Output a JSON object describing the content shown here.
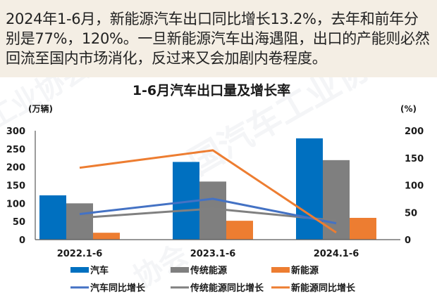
{
  "intro": {
    "text": "2024年1-6月，新能源汽车出口同比增长13.2%，去年和前年分别是77%，120%。一旦新能源汽车出海遇阻，出口的产能则必然回流至国内市场消化，反过来又会加剧内卷程度。"
  },
  "colors": {
    "car": "#0070c0",
    "traditional": "#7f7f7f",
    "nev": "#ed7d31",
    "car_growth": "#4472c4",
    "traditional_growth": "#808080",
    "nev_growth": "#ed7d31",
    "background_top": "#f4eee4"
  },
  "chart_data": {
    "type": "bar",
    "title": "1-6月汽车出口量及增长率",
    "ylabel": "(万辆)",
    "y2label": "(%)",
    "categories": [
      "2022.1-6",
      "2023.1-6",
      "2024.1-6"
    ],
    "ylim": [
      0,
      300
    ],
    "y2lim": [
      0,
      200
    ],
    "yticks": [
      0,
      50,
      100,
      150,
      200,
      250,
      300
    ],
    "y2ticks": [
      0,
      50,
      100,
      150,
      200
    ],
    "grid": false,
    "legend_position": "bottom",
    "series": [
      {
        "name": "汽车",
        "type": "bar",
        "axis": "left",
        "values": [
          122,
          214,
          279
        ]
      },
      {
        "name": "传统能源",
        "type": "bar",
        "axis": "left",
        "values": [
          100,
          160,
          219
        ]
      },
      {
        "name": "新能源",
        "type": "bar",
        "axis": "left",
        "values": [
          19,
          52,
          60
        ]
      },
      {
        "name": "汽车同比增长",
        "type": "line",
        "axis": "right",
        "values": [
          47,
          75,
          30
        ]
      },
      {
        "name": "传统能源同比增长",
        "type": "line",
        "axis": "right",
        "values": [
          40,
          57,
          35
        ]
      },
      {
        "name": "新能源同比增长",
        "type": "line",
        "axis": "right",
        "values": [
          132,
          164,
          13
        ]
      }
    ]
  },
  "legend": {
    "row1": [
      "汽车",
      "传统能源",
      "新能源"
    ],
    "row2": [
      "汽车同比增长",
      "传统能源同比增长",
      "新能源同比增长"
    ]
  }
}
